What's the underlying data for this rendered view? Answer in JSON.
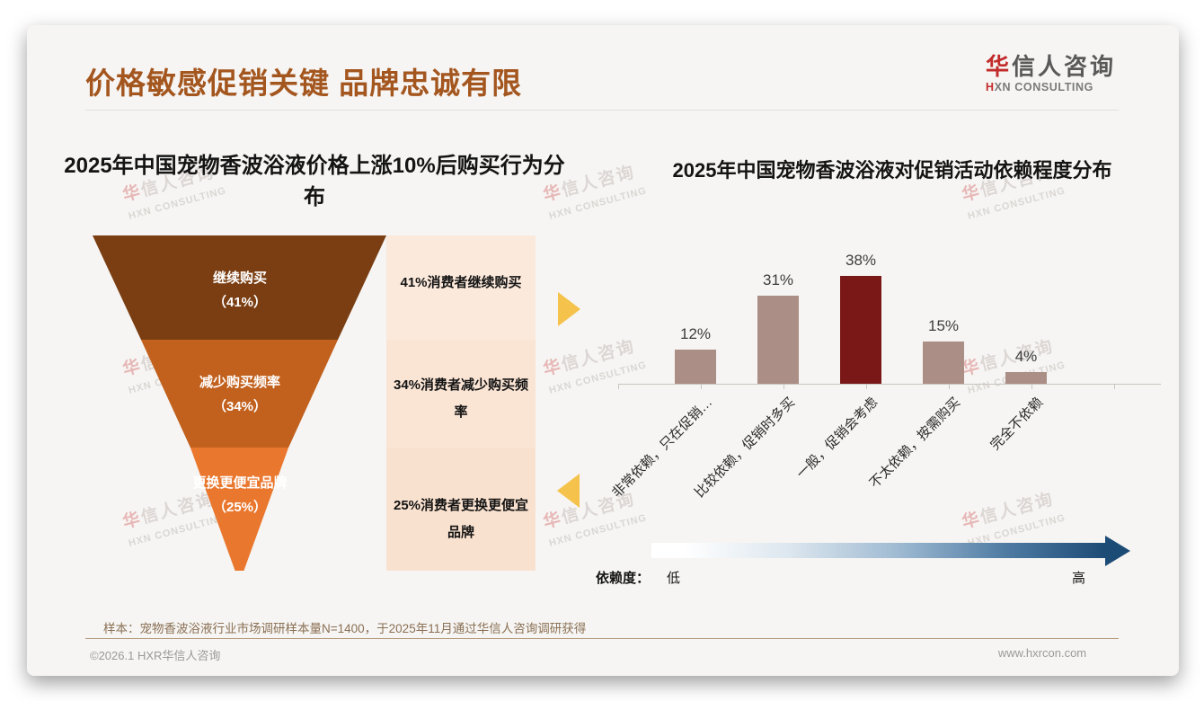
{
  "header": {
    "title": "价格敏感促销关键 品牌忠诚有限",
    "logo": {
      "cn_first": "华",
      "cn_rest": "信人咨询",
      "en_first": "H",
      "en_rest": "XN CONSULTING"
    }
  },
  "watermark": {
    "cn": "华信人咨询",
    "en": "HXN CONSULTING"
  },
  "chart_data": [
    {
      "type": "funnel",
      "title": "2025年中国宠物香波浴液价格上涨10%后购买行为分布",
      "categories": [
        "继续购买",
        "减少购买频率",
        "更换更便宜品牌"
      ],
      "values": [
        41,
        34,
        25
      ],
      "value_labels": [
        "（41%）",
        "（34%）",
        "（25%）"
      ],
      "side_notes": [
        "41%消费者继续购买",
        "34%消费者减少购买频率",
        "25%消费者更换更便宜品牌"
      ],
      "colors": [
        "#7b3e12",
        "#c2611e",
        "#e9772e"
      ],
      "note_bg": [
        "#fbe9db",
        "#fae4d4",
        "#f9e1cf"
      ]
    },
    {
      "type": "bar",
      "title": "2025年中国宠物香波浴液对促销活动依赖程度分布",
      "categories": [
        "非常依赖，只在促销…",
        "比较依赖，促销时多买",
        "一般，促销会考虑",
        "不太依赖，按需购买",
        "完全不依赖"
      ],
      "values": [
        12,
        31,
        38,
        15,
        4
      ],
      "value_labels": [
        "12%",
        "31%",
        "38%",
        "15%",
        "4%"
      ],
      "bar_colors": [
        "#ab8e85",
        "#ab8e85",
        "#7a1818",
        "#ab8e85",
        "#ab8e85"
      ],
      "ylim": [
        0,
        40
      ],
      "grid": false,
      "legend": {
        "label": "依赖度：",
        "low": "低",
        "high": "高"
      }
    }
  ],
  "footnote": "样本：宠物香波浴液行业市场调研样本量N=1400，于2025年11月通过华信人咨询调研获得",
  "footer": {
    "copyright": "©2026.1 HXR华信人咨询",
    "url": "www.hxrcon.com"
  }
}
